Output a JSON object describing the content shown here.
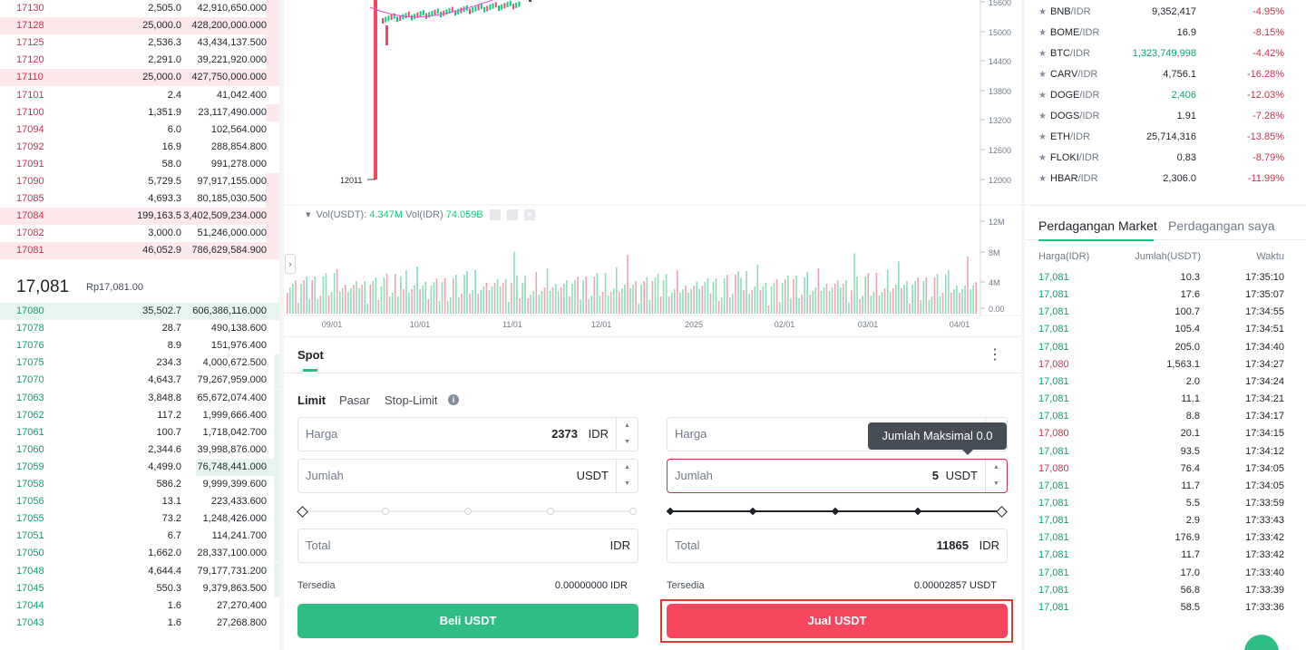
{
  "orderbook": {
    "asks": [
      {
        "price": "17130",
        "amount": "2,505.0",
        "total": "42,910,650.000",
        "depth": 0.05
      },
      {
        "price": "17128",
        "amount": "25,000.0",
        "total": "428,200,000.000",
        "depth": 1.0
      },
      {
        "price": "17125",
        "amount": "2,536.3",
        "total": "43,434,137.500",
        "depth": 0.05
      },
      {
        "price": "17120",
        "amount": "2,291.0",
        "total": "39,221,920.000",
        "depth": 0.05
      },
      {
        "price": "17110",
        "amount": "25,000.0",
        "total": "427,750,000.000",
        "depth": 1.0
      },
      {
        "price": "17101",
        "amount": "2.4",
        "total": "41,042.400",
        "depth": 0.0
      },
      {
        "price": "17100",
        "amount": "1,351.9",
        "total": "23,117,490.000",
        "depth": 0.05
      },
      {
        "price": "17094",
        "amount": "6.0",
        "total": "102,564.000",
        "depth": 0.0
      },
      {
        "price": "17092",
        "amount": "16.9",
        "total": "288,854.800",
        "depth": 0.0
      },
      {
        "price": "17091",
        "amount": "58.0",
        "total": "991,278.000",
        "depth": 0.0
      },
      {
        "price": "17090",
        "amount": "5,729.5",
        "total": "97,917,155.000",
        "depth": 0.05
      },
      {
        "price": "17085",
        "amount": "4,693.3",
        "total": "80,185,030.500",
        "depth": 0.05
      },
      {
        "price": "17084",
        "amount": "199,163.5",
        "total": "3,402,509,234.000",
        "depth": 1.0
      },
      {
        "price": "17082",
        "amount": "3,000.0",
        "total": "51,246,000.000",
        "depth": 0.05
      },
      {
        "price": "17081",
        "amount": "46,052.9",
        "total": "786,629,584.900",
        "depth": 1.0
      }
    ],
    "last_price": "17,081",
    "last_price_idr": "Rp17,081.00",
    "bids": [
      {
        "price": "17080",
        "amount": "35,502.7",
        "total": "606,386,116.000",
        "depth": 1.0
      },
      {
        "price": "17078",
        "amount": "28.7",
        "total": "490,138.600",
        "depth": 0.0
      },
      {
        "price": "17076",
        "amount": "8.9",
        "total": "151,976.400",
        "depth": 0.0
      },
      {
        "price": "17075",
        "amount": "234.3",
        "total": "4,000,672.500",
        "depth": 0.02
      },
      {
        "price": "17070",
        "amount": "4,643.7",
        "total": "79,267,959.000",
        "depth": 0.02
      },
      {
        "price": "17063",
        "amount": "3,848.8",
        "total": "65,672,074.400",
        "depth": 0.02
      },
      {
        "price": "17062",
        "amount": "117.2",
        "total": "1,999,666.400",
        "depth": 0.02
      },
      {
        "price": "17061",
        "amount": "100.7",
        "total": "1,718,042.700",
        "depth": 0.02
      },
      {
        "price": "17060",
        "amount": "2,344.6",
        "total": "39,998,876.000",
        "depth": 0.02
      },
      {
        "price": "17059",
        "amount": "4,499.0",
        "total": "76,748,441.000",
        "depth": 0.3
      },
      {
        "price": "17058",
        "amount": "586.2",
        "total": "9,999,399.600",
        "depth": 0.02
      },
      {
        "price": "17056",
        "amount": "13.1",
        "total": "223,433.600",
        "depth": 0.02
      },
      {
        "price": "17055",
        "amount": "73.2",
        "total": "1,248,426.000",
        "depth": 0.02
      },
      {
        "price": "17051",
        "amount": "6.7",
        "total": "114,241.700",
        "depth": 0.02
      },
      {
        "price": "17050",
        "amount": "1,662.0",
        "total": "28,337,100.000",
        "depth": 0.02
      },
      {
        "price": "17048",
        "amount": "4,644.4",
        "total": "79,177,731.200",
        "depth": 0.02
      },
      {
        "price": "17045",
        "amount": "550.3",
        "total": "9,379,863.500",
        "depth": 0.02
      },
      {
        "price": "17044",
        "amount": "1.6",
        "total": "27,270.400",
        "depth": 0.0
      },
      {
        "price": "17043",
        "amount": "1.6",
        "total": "27,268.800",
        "depth": 0.0
      }
    ]
  },
  "chart": {
    "price_axis": [
      "15600",
      "15000",
      "14400",
      "13800",
      "13200",
      "12600",
      "12000"
    ],
    "low_label": "12011",
    "vol_label": "Vol(USDT):",
    "vol_usdt": "4.347M",
    "vol_idr_label": "Vol(IDR)",
    "vol_idr": "74.059B",
    "vol_axis": [
      "12M",
      "8M",
      "4M",
      "0.00"
    ],
    "dates": [
      "09/01",
      "10/01",
      "11/01",
      "12/01",
      "2025",
      "02/01",
      "03/01",
      "04/01"
    ],
    "colors": {
      "up": "#0ecb81",
      "down": "#f6465d",
      "ma": "#e84fd6"
    }
  },
  "trade": {
    "tab": "Spot",
    "order_types": [
      "Limit",
      "Pasar",
      "Stop-Limit"
    ],
    "buy": {
      "price_label": "Harga",
      "price_value": "2373",
      "price_unit": "IDR",
      "amount_label": "Jumlah",
      "amount_unit": "USDT",
      "total_label": "Total",
      "total_unit": "IDR",
      "avail_label": "Tersedia",
      "avail_value": "0.00000000 IDR",
      "button": "Beli USDT"
    },
    "sell": {
      "price_label": "Harga",
      "amount_label": "Jumlah",
      "amount_value": "5",
      "amount_unit": "USDT",
      "total_label": "Total",
      "total_value": "11865",
      "total_unit": "IDR",
      "avail_label": "Tersedia",
      "avail_value": "0.00002857 USDT",
      "button": "Jual USDT",
      "tooltip": "Jumlah Maksimal 0.0"
    },
    "colors": {
      "buy": "#2ebd85",
      "sell": "#f6465d",
      "highlight": "#e03a2c"
    }
  },
  "markets": [
    {
      "base": "BNB",
      "quote": "/IDR",
      "last": "9,352,417",
      "change": "-4.95%"
    },
    {
      "base": "BOME",
      "quote": "/IDR",
      "last": "16.9",
      "change": "-8.15%"
    },
    {
      "base": "BTC",
      "quote": "/IDR",
      "last": "1,323,749,998",
      "change": "-4.42%",
      "up": true
    },
    {
      "base": "CARV",
      "quote": "/IDR",
      "last": "4,756.1",
      "change": "-16.28%"
    },
    {
      "base": "DOGE",
      "quote": "/IDR",
      "last": "2,406",
      "change": "-12.03%",
      "up": true
    },
    {
      "base": "DOGS",
      "quote": "/IDR",
      "last": "1.91",
      "change": "-7.28%"
    },
    {
      "base": "ETH",
      "quote": "/IDR",
      "last": "25,714,316",
      "change": "-13.85%"
    },
    {
      "base": "FLOKI",
      "quote": "/IDR",
      "last": "0.83",
      "change": "-8.79%"
    },
    {
      "base": "HBAR",
      "quote": "/IDR",
      "last": "2,306.0",
      "change": "-11.99%"
    }
  ],
  "trades_panel": {
    "tab_market": "Perdagangan Market",
    "tab_mine": "Perdagangan saya",
    "col_price": "Harga(IDR)",
    "col_amount": "Jumlah(USDT)",
    "col_time": "Waktu",
    "rows": [
      {
        "price": "17,081",
        "amount": "10.3",
        "time": "17:35:10",
        "side": "up"
      },
      {
        "price": "17,081",
        "amount": "17.6",
        "time": "17:35:07",
        "side": "up"
      },
      {
        "price": "17,081",
        "amount": "100.7",
        "time": "17:34:55",
        "side": "up"
      },
      {
        "price": "17,081",
        "amount": "105.4",
        "time": "17:34:51",
        "side": "up"
      },
      {
        "price": "17,081",
        "amount": "205.0",
        "time": "17:34:40",
        "side": "up"
      },
      {
        "price": "17,080",
        "amount": "1,563.1",
        "time": "17:34:27",
        "side": "dn"
      },
      {
        "price": "17,081",
        "amount": "2.0",
        "time": "17:34:24",
        "side": "up"
      },
      {
        "price": "17,081",
        "amount": "11.1",
        "time": "17:34:21",
        "side": "up"
      },
      {
        "price": "17,081",
        "amount": "8.8",
        "time": "17:34:17",
        "side": "up"
      },
      {
        "price": "17,080",
        "amount": "20.1",
        "time": "17:34:15",
        "side": "dn"
      },
      {
        "price": "17,081",
        "amount": "93.5",
        "time": "17:34:12",
        "side": "up"
      },
      {
        "price": "17,080",
        "amount": "76.4",
        "time": "17:34:05",
        "side": "dn"
      },
      {
        "price": "17,081",
        "amount": "11.7",
        "time": "17:34:05",
        "side": "up"
      },
      {
        "price": "17,081",
        "amount": "5.5",
        "time": "17:33:59",
        "side": "up"
      },
      {
        "price": "17,081",
        "amount": "2.9",
        "time": "17:33:43",
        "side": "up"
      },
      {
        "price": "17,081",
        "amount": "176.9",
        "time": "17:33:42",
        "side": "up"
      },
      {
        "price": "17,081",
        "amount": "11.7",
        "time": "17:33:42",
        "side": "up"
      },
      {
        "price": "17,081",
        "amount": "17.0",
        "time": "17:33:40",
        "side": "up"
      },
      {
        "price": "17,081",
        "amount": "56.8",
        "time": "17:33:39",
        "side": "up"
      },
      {
        "price": "17,081",
        "amount": "58.5",
        "time": "17:33:36",
        "side": "up"
      }
    ]
  }
}
